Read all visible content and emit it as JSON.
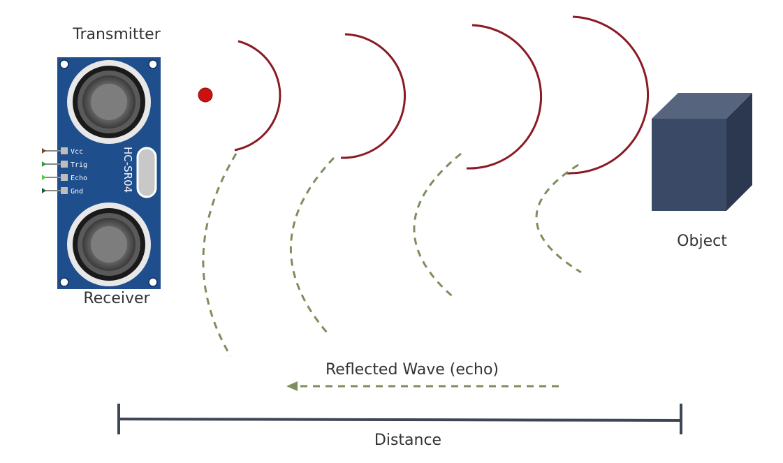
{
  "labels": {
    "transmitter": "Transmitter",
    "receiver": "Receiver",
    "object": "Object",
    "reflected": "Reflected Wave (echo)",
    "distance": "Distance"
  },
  "sensor": {
    "model": "HC-SR04",
    "pins": [
      "Vcc",
      "Trig",
      "Echo",
      "Gnd"
    ],
    "pin_colors": [
      "#7a4a1e",
      "#2e9c3a",
      "#55cc44",
      "#1d5e2a"
    ],
    "board_color": "#1e4e8c"
  },
  "colors": {
    "emitted_wave": "#8b1a24",
    "reflected_wave": "#7c8f5c",
    "source_dot": "#cc1111",
    "object_front": "#3a4a66",
    "object_top": "#56647e",
    "object_side": "#2c3850",
    "distance_bar": "#3c4656"
  }
}
